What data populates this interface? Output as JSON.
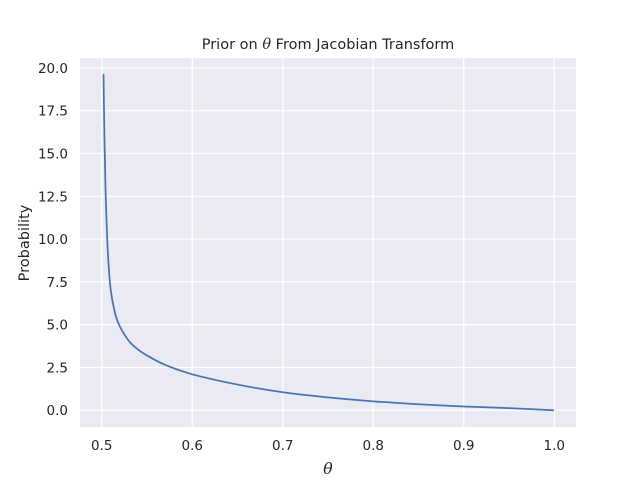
{
  "chart_data": {
    "type": "line",
    "title": {
      "prefix": "Prior on ",
      "symbol": "θ",
      "suffix": " From Jacobian Transform"
    },
    "xlabel": "θ",
    "ylabel": "Probability",
    "xlim": [
      0.476,
      1.024
    ],
    "ylim": [
      -0.98,
      20.58
    ],
    "xticks": [
      0.5,
      0.6,
      0.7,
      0.8,
      0.9,
      1.0
    ],
    "xtick_labels": [
      "0.5",
      "0.6",
      "0.7",
      "0.8",
      "0.9",
      "1.0"
    ],
    "yticks": [
      0.0,
      2.5,
      5.0,
      7.5,
      10.0,
      12.5,
      15.0,
      17.5,
      20.0
    ],
    "ytick_labels": [
      "0.0",
      "2.5",
      "5.0",
      "7.5",
      "10.0",
      "12.5",
      "15.0",
      "17.5",
      "20.0"
    ],
    "grid": true,
    "background_color": "#eaeaf2",
    "grid_color": "#ffffff",
    "series": [
      {
        "color": "#4c72b0",
        "x": [
          0.502,
          0.503,
          0.504,
          0.505,
          0.507,
          0.51,
          0.515,
          0.52,
          0.53,
          0.54,
          0.55,
          0.57,
          0.6,
          0.65,
          0.7,
          0.75,
          0.8,
          0.85,
          0.9,
          0.95,
          0.999
        ],
        "y": [
          19.6,
          15.9,
          13.4,
          11.5,
          9.0,
          7.0,
          5.6,
          4.9,
          4.05,
          3.55,
          3.2,
          2.65,
          2.1,
          1.5,
          1.05,
          0.75,
          0.52,
          0.35,
          0.22,
          0.12,
          0.0
        ]
      }
    ]
  }
}
